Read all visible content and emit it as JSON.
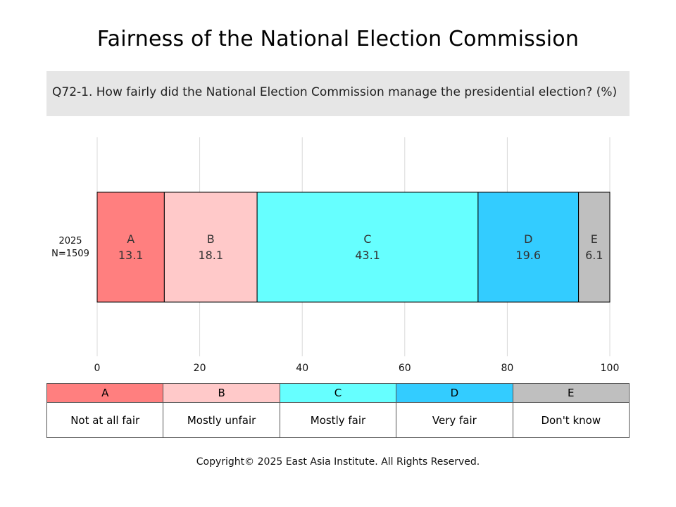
{
  "title": "Fairness of the National Election Commission",
  "question": "Q72-1. How fairly did the National Election Commission manage the presidential election? (%)",
  "copyright": "Copyright© 2025 East Asia Institute. All Rights Reserved.",
  "chart_data": {
    "type": "bar",
    "orientation": "horizontal",
    "stacked": true,
    "categories": [
      [
        "2025",
        "N=1509"
      ]
    ],
    "xlim": [
      0,
      100
    ],
    "xticks": [
      "0",
      "20",
      "40",
      "60",
      "80",
      "100"
    ],
    "grid": true,
    "series": [
      {
        "name": "A",
        "values": [
          13.1
        ],
        "color": "#ff7f7f"
      },
      {
        "name": "B",
        "values": [
          18.1
        ],
        "color": "#ffc9c9"
      },
      {
        "name": "C",
        "values": [
          43.1
        ],
        "color": "#66ffff"
      },
      {
        "name": "D",
        "values": [
          19.6
        ],
        "color": "#33ccff"
      },
      {
        "name": "E",
        "values": [
          6.1
        ],
        "color": "#bfbfbf"
      }
    ]
  },
  "legend": [
    {
      "code": "A",
      "label": "Not at all fair",
      "color": "#ff7f7f"
    },
    {
      "code": "B",
      "label": "Mostly unfair",
      "color": "#ffc9c9"
    },
    {
      "code": "C",
      "label": "Mostly fair",
      "color": "#66ffff"
    },
    {
      "code": "D",
      "label": "Very fair",
      "color": "#33ccff"
    },
    {
      "code": "E",
      "label": "Don't know",
      "color": "#bfbfbf"
    }
  ]
}
